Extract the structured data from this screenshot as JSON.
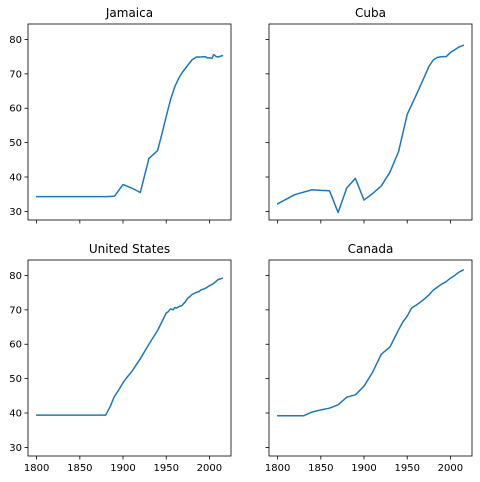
{
  "chart_data": [
    {
      "type": "line",
      "title": "Jamaica",
      "xlim": [
        1790,
        2025
      ],
      "ylim": [
        27.5,
        84.5
      ],
      "x_ticks": [
        1800,
        1850,
        1900,
        1950,
        2000
      ],
      "y_ticks": [
        30,
        40,
        50,
        60,
        70,
        80
      ],
      "x_tick_labels_visible": false,
      "y_tick_labels_visible": true,
      "series": [
        {
          "color": "#1f77b4",
          "x": [
            1800,
            1850,
            1880,
            1890,
            1900,
            1910,
            1920,
            1930,
            1940,
            1945,
            1950,
            1955,
            1960,
            1965,
            1970,
            1975,
            1980,
            1985,
            1990,
            1995,
            1998,
            2000,
            2003,
            2005,
            2008,
            2010,
            2015
          ],
          "y": [
            34.3,
            34.3,
            34.3,
            34.4,
            37.8,
            36.8,
            35.5,
            45.4,
            47.7,
            52.5,
            57.6,
            62.5,
            66.3,
            69.0,
            70.9,
            72.5,
            74.1,
            74.9,
            74.9,
            75.0,
            74.6,
            74.7,
            74.5,
            75.6,
            75.0,
            74.9,
            75.3
          ]
        }
      ]
    },
    {
      "type": "line",
      "title": "Cuba",
      "xlim": [
        1790,
        2025
      ],
      "ylim": [
        27.5,
        84.5
      ],
      "x_ticks": [
        1800,
        1850,
        1900,
        1950,
        2000
      ],
      "y_ticks": [
        30,
        40,
        50,
        60,
        70,
        80
      ],
      "x_tick_labels_visible": false,
      "y_tick_labels_visible": false,
      "series": [
        {
          "color": "#1f77b4",
          "x": [
            1800,
            1820,
            1840,
            1850,
            1860,
            1870,
            1880,
            1890,
            1900,
            1910,
            1920,
            1930,
            1940,
            1950,
            1960,
            1970,
            1975,
            1980,
            1985,
            1990,
            1995,
            2000,
            2005,
            2010,
            2015
          ],
          "y": [
            32.2,
            34.9,
            36.3,
            36.1,
            36.0,
            29.7,
            36.8,
            39.6,
            33.3,
            35.2,
            37.4,
            41.4,
            47.4,
            58.2,
            63.6,
            69.2,
            72.1,
            74.0,
            74.8,
            75.0,
            75.0,
            76.2,
            77.0,
            77.8,
            78.3
          ]
        }
      ]
    },
    {
      "type": "line",
      "title": "United States",
      "xlim": [
        1790,
        2025
      ],
      "ylim": [
        27.5,
        84.5
      ],
      "x_ticks": [
        1800,
        1850,
        1900,
        1950,
        2000
      ],
      "y_ticks": [
        30,
        40,
        50,
        60,
        70,
        80
      ],
      "x_tick_labels_visible": true,
      "y_tick_labels_visible": true,
      "series": [
        {
          "color": "#1f77b4",
          "x": [
            1800,
            1850,
            1880,
            1885,
            1890,
            1895,
            1900,
            1905,
            1910,
            1915,
            1920,
            1925,
            1930,
            1935,
            1940,
            1945,
            1950,
            1952,
            1955,
            1958,
            1960,
            1962,
            1965,
            1968,
            1970,
            1972,
            1975,
            1978,
            1980,
            1985,
            1988,
            1990,
            1995,
            2000,
            2005,
            2010,
            2015
          ],
          "y": [
            39.4,
            39.4,
            39.4,
            41.8,
            44.8,
            46.7,
            48.8,
            50.5,
            52.0,
            53.9,
            55.8,
            57.9,
            60.0,
            62.0,
            64.0,
            66.5,
            69.1,
            69.4,
            70.3,
            70.0,
            70.7,
            70.5,
            71.0,
            71.2,
            71.8,
            72.3,
            73.4,
            74.0,
            74.5,
            75.1,
            75.3,
            75.8,
            76.2,
            77.0,
            77.7,
            78.8,
            79.2
          ]
        }
      ]
    },
    {
      "type": "line",
      "title": "Canada",
      "xlim": [
        1790,
        2025
      ],
      "ylim": [
        27.5,
        84.5
      ],
      "x_ticks": [
        1800,
        1850,
        1900,
        1950,
        2000
      ],
      "y_ticks": [
        30,
        40,
        50,
        60,
        70,
        80
      ],
      "x_tick_labels_visible": true,
      "y_tick_labels_visible": false,
      "series": [
        {
          "color": "#1f77b4",
          "x": [
            1800,
            1810,
            1820,
            1830,
            1840,
            1850,
            1860,
            1870,
            1880,
            1890,
            1900,
            1910,
            1920,
            1930,
            1940,
            1945,
            1950,
            1955,
            1960,
            1965,
            1970,
            1975,
            1980,
            1985,
            1990,
            1995,
            2000,
            2005,
            2010,
            2015
          ],
          "y": [
            39.2,
            39.2,
            39.2,
            39.2,
            40.3,
            40.9,
            41.4,
            42.4,
            44.6,
            45.3,
            47.8,
            51.9,
            57.1,
            59.2,
            64.2,
            66.5,
            68.2,
            70.5,
            71.3,
            72.2,
            73.2,
            74.3,
            75.7,
            76.6,
            77.5,
            78.2,
            79.2,
            80.0,
            81.0,
            81.6
          ]
        }
      ]
    }
  ]
}
